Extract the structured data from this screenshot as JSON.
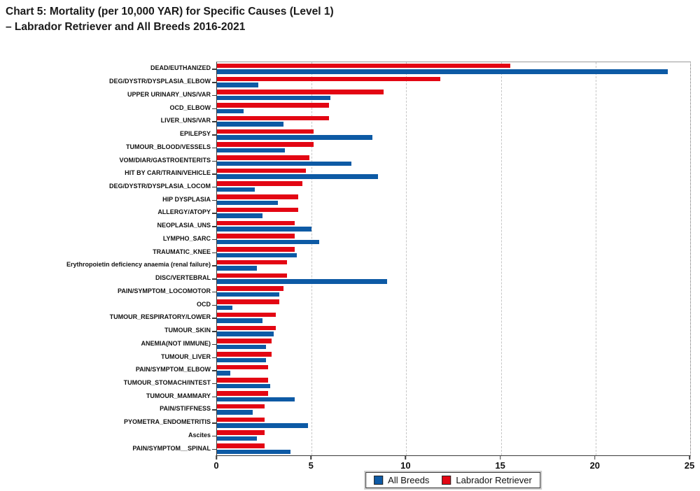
{
  "title": {
    "line1": "Chart 5: Mortality (per 10,000 YAR) for Specific Causes (Level 1)",
    "line2": "– Labrador Retriever and All Breeds 2016-2021"
  },
  "legend": [
    {
      "label": "All Breeds",
      "color": "#0d5aa5"
    },
    {
      "label": "Labrador Retriever",
      "color": "#e30613"
    }
  ],
  "chart_data": {
    "type": "bar",
    "orientation": "horizontal",
    "title": "Chart 5: Mortality (per 10,000 YAR) for Specific Causes (Level 1) – Labrador Retriever and All Breeds 2016-2021",
    "xlabel": "",
    "ylabel": "",
    "xlim": [
      0,
      25
    ],
    "xticks": [
      0,
      5,
      10,
      15,
      20,
      25
    ],
    "grid": "vertical dashed gridlines at 5, 10, 15, 20, 25",
    "legend_position": "bottom center",
    "bar_order_within_group": [
      "Labrador Retriever (top)",
      "All Breeds (bottom)"
    ],
    "categories": [
      "DEAD/EUTHANIZED",
      "DEG/DYSTR/DYSPLASIA_ELBOW",
      "UPPER URINARY_UNS/VAR",
      "OCD_ELBOW",
      "LIVER_UNS/VAR",
      "EPILEPSY",
      "TUMOUR_BLOOD/VESSELS",
      "VOM/DIAR/GASTROENTERITS",
      "HIT BY CAR/TRAIN/VEHICLE",
      "DEG/DYSTR/DYSPLASIA_LOCOM",
      "HIP DYSPLASIA",
      "ALLERGY/ATOPY",
      "NEOPLASIA_UNS",
      "LYMPHO_SARC",
      "TRAUMATIC_KNEE",
      "Erythropoietin deficiency anaemia (renal failure)",
      "DISC/VERTEBRAL",
      "PAIN/SYMPTOM_LOCOMOTOR",
      "OCD",
      "TUMOUR_RESPIRATORY/LOWER",
      "TUMOUR_SKIN",
      "ANEMIA(NOT IMMUNE)",
      "TUMOUR_LIVER",
      "PAIN/SYMPTOM_ELBOW",
      "TUMOUR_STOMACH/INTEST",
      "TUMOUR_MAMMARY",
      "PAIN/STIFFNESS",
      "PYOMETRA_ENDOMETRITIS",
      "Ascites",
      "PAIN/SYMPTOM__SPINAL"
    ],
    "series": [
      {
        "name": "Labrador Retriever",
        "color": "#e30613",
        "values": [
          15.5,
          11.8,
          8.8,
          5.9,
          5.9,
          5.1,
          5.1,
          4.9,
          4.7,
          4.5,
          4.3,
          4.3,
          4.1,
          4.1,
          4.1,
          3.7,
          3.7,
          3.5,
          3.3,
          3.1,
          3.1,
          2.9,
          2.9,
          2.7,
          2.7,
          2.7,
          2.5,
          2.5,
          2.5,
          2.5
        ]
      },
      {
        "name": "All Breeds",
        "color": "#0d5aa5",
        "values": [
          23.8,
          2.2,
          6.0,
          1.4,
          3.5,
          8.2,
          3.6,
          7.1,
          8.5,
          2.0,
          3.2,
          2.4,
          5.0,
          5.4,
          4.2,
          2.1,
          9.0,
          3.3,
          0.8,
          2.4,
          3.0,
          2.6,
          2.6,
          0.7,
          2.8,
          4.1,
          1.9,
          4.8,
          2.1,
          3.9
        ]
      }
    ]
  }
}
